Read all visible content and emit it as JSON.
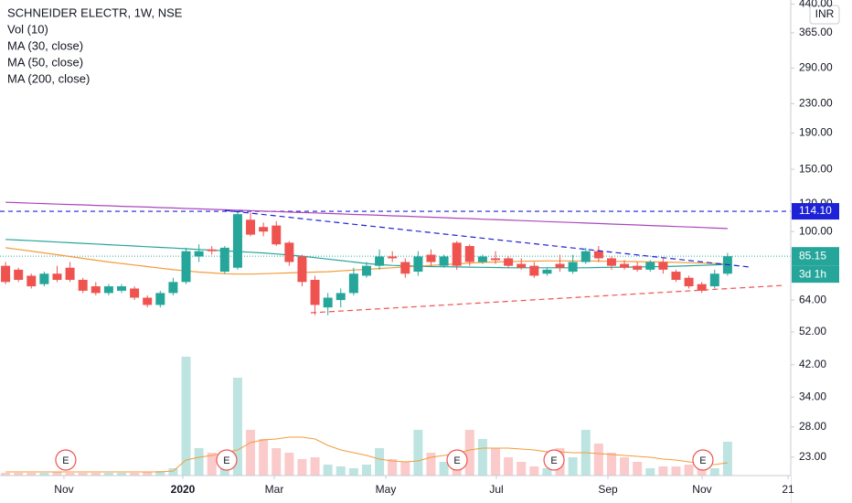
{
  "chart_data": {
    "type": "candlestick",
    "title": "SCHNEIDER ELECTR, 1W, NSE",
    "currency": "INR",
    "log_scale": true,
    "up_color": "#26a69a",
    "down_color": "#ef5350",
    "ylim": [
      20.4,
      452
    ],
    "yticks": [
      {
        "value": 440,
        "label": "440.00"
      },
      {
        "value": 365,
        "label": "365.00"
      },
      {
        "value": 290,
        "label": "290.00"
      },
      {
        "value": 230,
        "label": "230.00"
      },
      {
        "value": 190,
        "label": "190.00"
      },
      {
        "value": 150,
        "label": "150.00"
      },
      {
        "value": 120,
        "label": "120.00"
      },
      {
        "value": 100,
        "label": "100.00"
      },
      {
        "value": 64,
        "label": "64.00"
      },
      {
        "value": 52,
        "label": "52.00"
      },
      {
        "value": 42,
        "label": "42.00"
      },
      {
        "value": 34,
        "label": "34.00"
      },
      {
        "value": 28,
        "label": "28.00"
      },
      {
        "value": 23,
        "label": "23.00"
      }
    ],
    "xlim": [
      -0.43,
      60.9
    ],
    "xticks": [
      {
        "value": 4.53,
        "label": "Nov"
      },
      {
        "value": 13.75,
        "label": "2020"
      },
      {
        "value": 20.84,
        "label": "Mar"
      },
      {
        "value": 29.49,
        "label": "May"
      },
      {
        "value": 38.07,
        "label": "Jul"
      },
      {
        "value": 46.72,
        "label": "Sep"
      },
      {
        "value": 54.02,
        "label": "Nov"
      },
      {
        "value": 60.69,
        "label": "21"
      }
    ],
    "ohlc": [
      [
        80,
        82,
        71,
        72
      ],
      [
        78,
        79,
        72,
        73
      ],
      [
        75,
        76,
        69,
        70
      ],
      [
        71,
        77,
        70,
        76
      ],
      [
        76,
        80,
        72,
        73
      ],
      [
        79,
        82,
        72,
        73
      ],
      [
        73,
        74,
        67,
        68
      ],
      [
        70,
        72,
        66,
        67
      ],
      [
        67,
        71,
        66,
        70
      ],
      [
        68,
        71,
        67,
        70
      ],
      [
        69,
        70,
        64,
        65
      ],
      [
        65,
        66,
        61,
        62
      ],
      [
        62,
        68,
        61,
        67
      ],
      [
        67,
        74,
        66,
        72
      ],
      [
        72,
        90,
        71,
        88
      ],
      [
        85,
        92,
        82,
        88
      ],
      [
        89,
        91,
        86,
        88
      ],
      [
        77,
        91,
        76,
        90
      ],
      [
        79,
        115,
        78,
        112
      ],
      [
        108,
        113,
        97,
        98
      ],
      [
        103,
        106,
        97,
        100
      ],
      [
        104,
        107,
        91,
        92
      ],
      [
        93,
        94,
        80,
        82
      ],
      [
        85,
        86,
        70,
        72
      ],
      [
        73,
        75,
        58,
        62
      ],
      [
        61,
        67,
        58,
        65
      ],
      [
        64,
        69,
        61,
        67
      ],
      [
        67,
        79,
        66,
        76
      ],
      [
        75,
        82,
        74,
        80
      ],
      [
        80,
        89,
        78,
        85
      ],
      [
        85,
        88,
        82,
        84
      ],
      [
        82,
        84,
        74,
        76
      ],
      [
        77,
        88,
        75,
        85
      ],
      [
        86,
        89,
        80,
        82
      ],
      [
        80,
        86,
        79,
        85
      ],
      [
        93,
        94,
        78,
        80
      ],
      [
        91,
        92,
        80,
        82
      ],
      [
        82,
        86,
        81,
        85
      ],
      [
        84,
        88,
        81,
        83
      ],
      [
        84,
        85,
        79,
        80
      ],
      [
        81,
        84,
        78,
        79
      ],
      [
        80,
        82,
        74,
        75
      ],
      [
        76,
        79,
        75,
        78
      ],
      [
        81,
        86,
        77,
        79
      ],
      [
        77,
        86,
        76,
        82
      ],
      [
        82,
        90,
        81,
        88
      ],
      [
        88,
        91,
        82,
        84
      ],
      [
        84,
        85,
        78,
        80
      ],
      [
        81,
        83,
        78,
        79
      ],
      [
        80,
        82,
        77,
        78
      ],
      [
        78,
        83,
        77,
        82
      ],
      [
        82,
        84,
        76,
        78
      ],
      [
        77,
        78,
        72,
        73
      ],
      [
        74,
        75,
        69,
        70
      ],
      [
        71,
        72,
        67,
        68
      ],
      [
        70,
        78,
        69,
        76
      ],
      [
        76,
        87,
        75,
        85.15
      ]
    ],
    "series": [
      {
        "name": "MA (30, close)",
        "color": "#26a69a",
        "values": [
          95,
          94.6,
          94.2,
          93.8,
          93.4,
          93,
          92.6,
          92.2,
          91.8,
          91.4,
          91,
          90.6,
          90.2,
          89.8,
          89.4,
          89,
          88.6,
          88.2,
          87.8,
          87.4,
          87,
          86.4,
          85.8,
          85.2,
          84.4,
          83.6,
          82.8,
          82,
          81.2,
          80.6,
          80.2,
          80,
          79.8,
          79.6,
          79.5,
          79.4,
          79.3,
          79.2,
          79.1,
          79,
          79,
          79,
          79,
          79,
          79,
          79,
          79.1,
          79.2,
          79.3,
          79.4,
          79.5,
          79.6,
          79.8,
          80,
          80.2,
          80.5,
          80.8
        ]
      },
      {
        "name": "MA (50, close)",
        "color": "#f39c3c",
        "values": [
          90,
          89,
          88,
          87,
          86,
          85,
          84,
          83,
          82,
          81.2,
          80.4,
          79.6,
          78.8,
          78,
          77.4,
          76.8,
          76.4,
          76,
          75.8,
          75.8,
          76,
          76.2,
          76.4,
          76.6,
          76.8,
          77,
          77.4,
          77.8,
          78.2,
          78.6,
          79,
          79.4,
          79.8,
          80.2,
          80.6,
          81,
          81.4,
          81.8,
          82,
          82.2,
          82.4,
          82.5,
          82.6,
          82.6,
          82.6,
          82.6,
          82.5,
          82.4,
          82.3,
          82.2,
          82.1,
          82,
          81.8,
          81.6,
          81.4,
          81.2,
          81
        ]
      },
      {
        "name": "MA (200, close)",
        "color": "#ab47bc",
        "values": [
          121,
          120.7,
          120.3,
          120,
          119.6,
          119.3,
          119,
          118.6,
          118.3,
          117.9,
          117.6,
          117.3,
          116.9,
          116.6,
          116.2,
          115.9,
          115.6,
          115.2,
          114.9,
          114.6,
          114.2,
          113.9,
          113.5,
          113.2,
          112.9,
          112.5,
          112.2,
          111.8,
          111.5,
          111.2,
          110.8,
          110.5,
          110.1,
          109.8,
          109.5,
          109.1,
          108.8,
          108.4,
          108.1,
          107.8,
          107.4,
          107.1,
          106.7,
          106.4,
          106.1,
          105.7,
          105.4,
          105,
          104.7,
          104.4,
          104,
          103.7,
          103.3,
          103,
          102.7,
          102.3,
          102
        ]
      }
    ],
    "volume": {
      "name": "Vol (10)",
      "ma_color": "#f39c3c",
      "lim": [
        0,
        150
      ],
      "values": [
        3,
        3,
        3,
        3,
        4,
        3,
        3,
        3,
        3,
        3,
        3,
        4,
        5,
        8,
        130,
        30,
        25,
        25,
        107,
        50,
        40,
        30,
        25,
        18,
        20,
        12,
        10,
        8,
        12,
        30,
        18,
        15,
        50,
        25,
        15,
        20,
        50,
        40,
        30,
        20,
        15,
        10,
        8,
        30,
        20,
        50,
        35,
        25,
        20,
        15,
        8,
        10,
        10,
        12,
        10,
        8,
        37
      ],
      "ma": [
        4,
        4,
        4,
        4,
        4,
        4,
        4,
        4,
        4,
        4,
        4,
        4,
        4,
        5,
        17,
        20,
        22,
        25,
        28,
        36,
        39,
        40,
        42,
        42,
        40,
        33,
        28,
        25,
        22,
        18,
        16,
        15,
        16,
        20,
        22,
        24,
        28,
        30,
        30,
        30,
        29,
        28,
        26,
        26,
        25,
        25,
        24,
        23,
        22,
        21,
        20,
        18,
        17,
        15,
        13,
        12,
        14
      ]
    },
    "last_price": 85.15,
    "countdown": "3d 1h",
    "level": {
      "value": 114.1,
      "label": "114.10",
      "color": "#1e22d6"
    },
    "events": [
      {
        "label": "E",
        "x": 4.67
      },
      {
        "label": "E",
        "x": 17.15
      },
      {
        "label": "E",
        "x": 35.02
      },
      {
        "label": "E",
        "x": 42.54
      },
      {
        "label": "E",
        "x": 54.09
      }
    ]
  }
}
